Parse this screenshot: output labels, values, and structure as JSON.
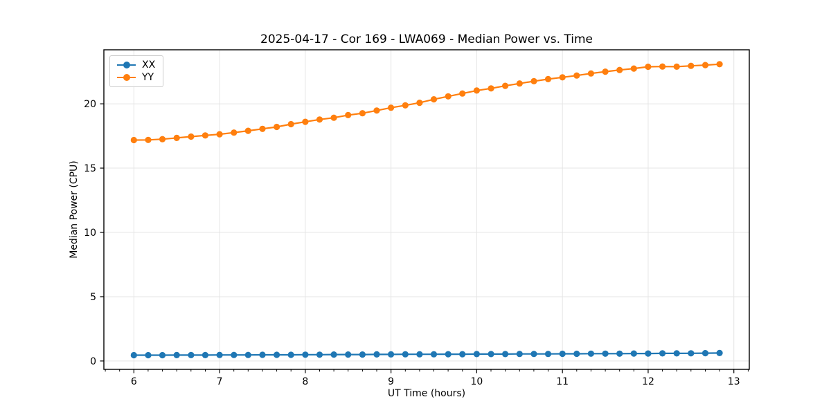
{
  "page": {
    "background": "#ffffff"
  },
  "chart_data": {
    "type": "line",
    "title": "2025-04-17 - Cor 169 - LWA069 - Median Power vs. Time",
    "xlabel": "UT Time (hours)",
    "ylabel": "Median Power (CPU)",
    "xlim": [
      5.65,
      13.18
    ],
    "ylim": [
      -0.65,
      24.2
    ],
    "xticks": [
      6,
      7,
      8,
      9,
      10,
      11,
      12,
      13
    ],
    "yticks": [
      0,
      5,
      10,
      15,
      20
    ],
    "x_minor_step": 0.1666667,
    "grid": true,
    "grid_color": "#e5e5e5",
    "axis_color": "#000000",
    "legend_position": "upper-left",
    "legend_entries": [
      "XX",
      "YY"
    ],
    "x": [
      6.0,
      6.167,
      6.333,
      6.5,
      6.667,
      6.833,
      7.0,
      7.167,
      7.333,
      7.5,
      7.667,
      7.833,
      8.0,
      8.167,
      8.333,
      8.5,
      8.667,
      8.833,
      9.0,
      9.167,
      9.333,
      9.5,
      9.667,
      9.833,
      10.0,
      10.167,
      10.333,
      10.5,
      10.667,
      10.833,
      11.0,
      11.167,
      11.333,
      11.5,
      11.667,
      11.833,
      12.0,
      12.167,
      12.333,
      12.5,
      12.667,
      12.833
    ],
    "series": [
      {
        "name": "XX",
        "color": "#1f77b4",
        "values": [
          0.45,
          0.45,
          0.45,
          0.46,
          0.46,
          0.46,
          0.47,
          0.47,
          0.47,
          0.48,
          0.48,
          0.48,
          0.49,
          0.49,
          0.5,
          0.5,
          0.5,
          0.51,
          0.51,
          0.52,
          0.52,
          0.52,
          0.53,
          0.53,
          0.54,
          0.54,
          0.54,
          0.55,
          0.55,
          0.55,
          0.56,
          0.56,
          0.57,
          0.57,
          0.57,
          0.58,
          0.58,
          0.59,
          0.59,
          0.6,
          0.61,
          0.62
        ]
      },
      {
        "name": "YY",
        "color": "#ff7f0e",
        "values": [
          17.18,
          17.19,
          17.25,
          17.35,
          17.45,
          17.54,
          17.63,
          17.76,
          17.9,
          18.05,
          18.2,
          18.42,
          18.6,
          18.78,
          18.92,
          19.12,
          19.27,
          19.48,
          19.7,
          19.88,
          20.08,
          20.35,
          20.58,
          20.8,
          21.03,
          21.2,
          21.4,
          21.58,
          21.76,
          21.92,
          22.06,
          22.2,
          22.36,
          22.5,
          22.63,
          22.74,
          22.88,
          22.9,
          22.89,
          22.95,
          23.01,
          23.08
        ]
      }
    ]
  }
}
